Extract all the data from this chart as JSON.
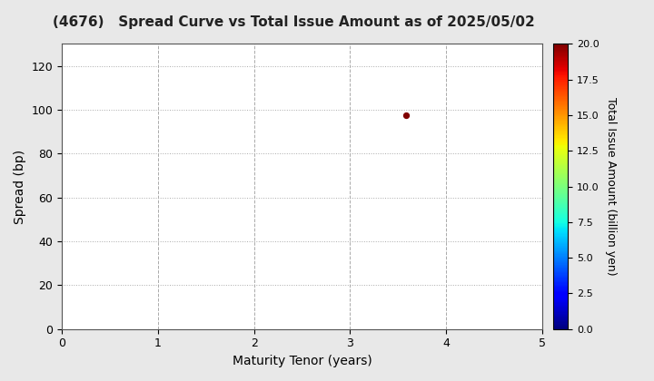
{
  "title": "(4676)   Spread Curve vs Total Issue Amount as of 2025/05/02",
  "xlabel": "Maturity Tenor (years)",
  "ylabel": "Spread (bp)",
  "colorbar_label": "Total Issue Amount (billion yen)",
  "scatter_x": [
    3.58
  ],
  "scatter_y": [
    97.5
  ],
  "scatter_color_value": [
    20.0
  ],
  "xlim": [
    0,
    5
  ],
  "ylim": [
    0,
    130
  ],
  "xticks": [
    0,
    1,
    2,
    3,
    4,
    5
  ],
  "yticks": [
    0,
    20,
    40,
    60,
    80,
    100,
    120
  ],
  "colorbar_min": 0.0,
  "colorbar_max": 20.0,
  "colorbar_ticks": [
    0.0,
    2.5,
    5.0,
    7.5,
    10.0,
    12.5,
    15.0,
    17.5,
    20.0
  ],
  "marker_size": 18,
  "background_color": "#ffffff",
  "fig_background_color": "#e8e8e8",
  "grid_color": "#aaaaaa",
  "title_fontsize": 11,
  "axis_label_fontsize": 10,
  "tick_fontsize": 9,
  "colorbar_tick_fontsize": 8,
  "colorbar_label_fontsize": 9
}
